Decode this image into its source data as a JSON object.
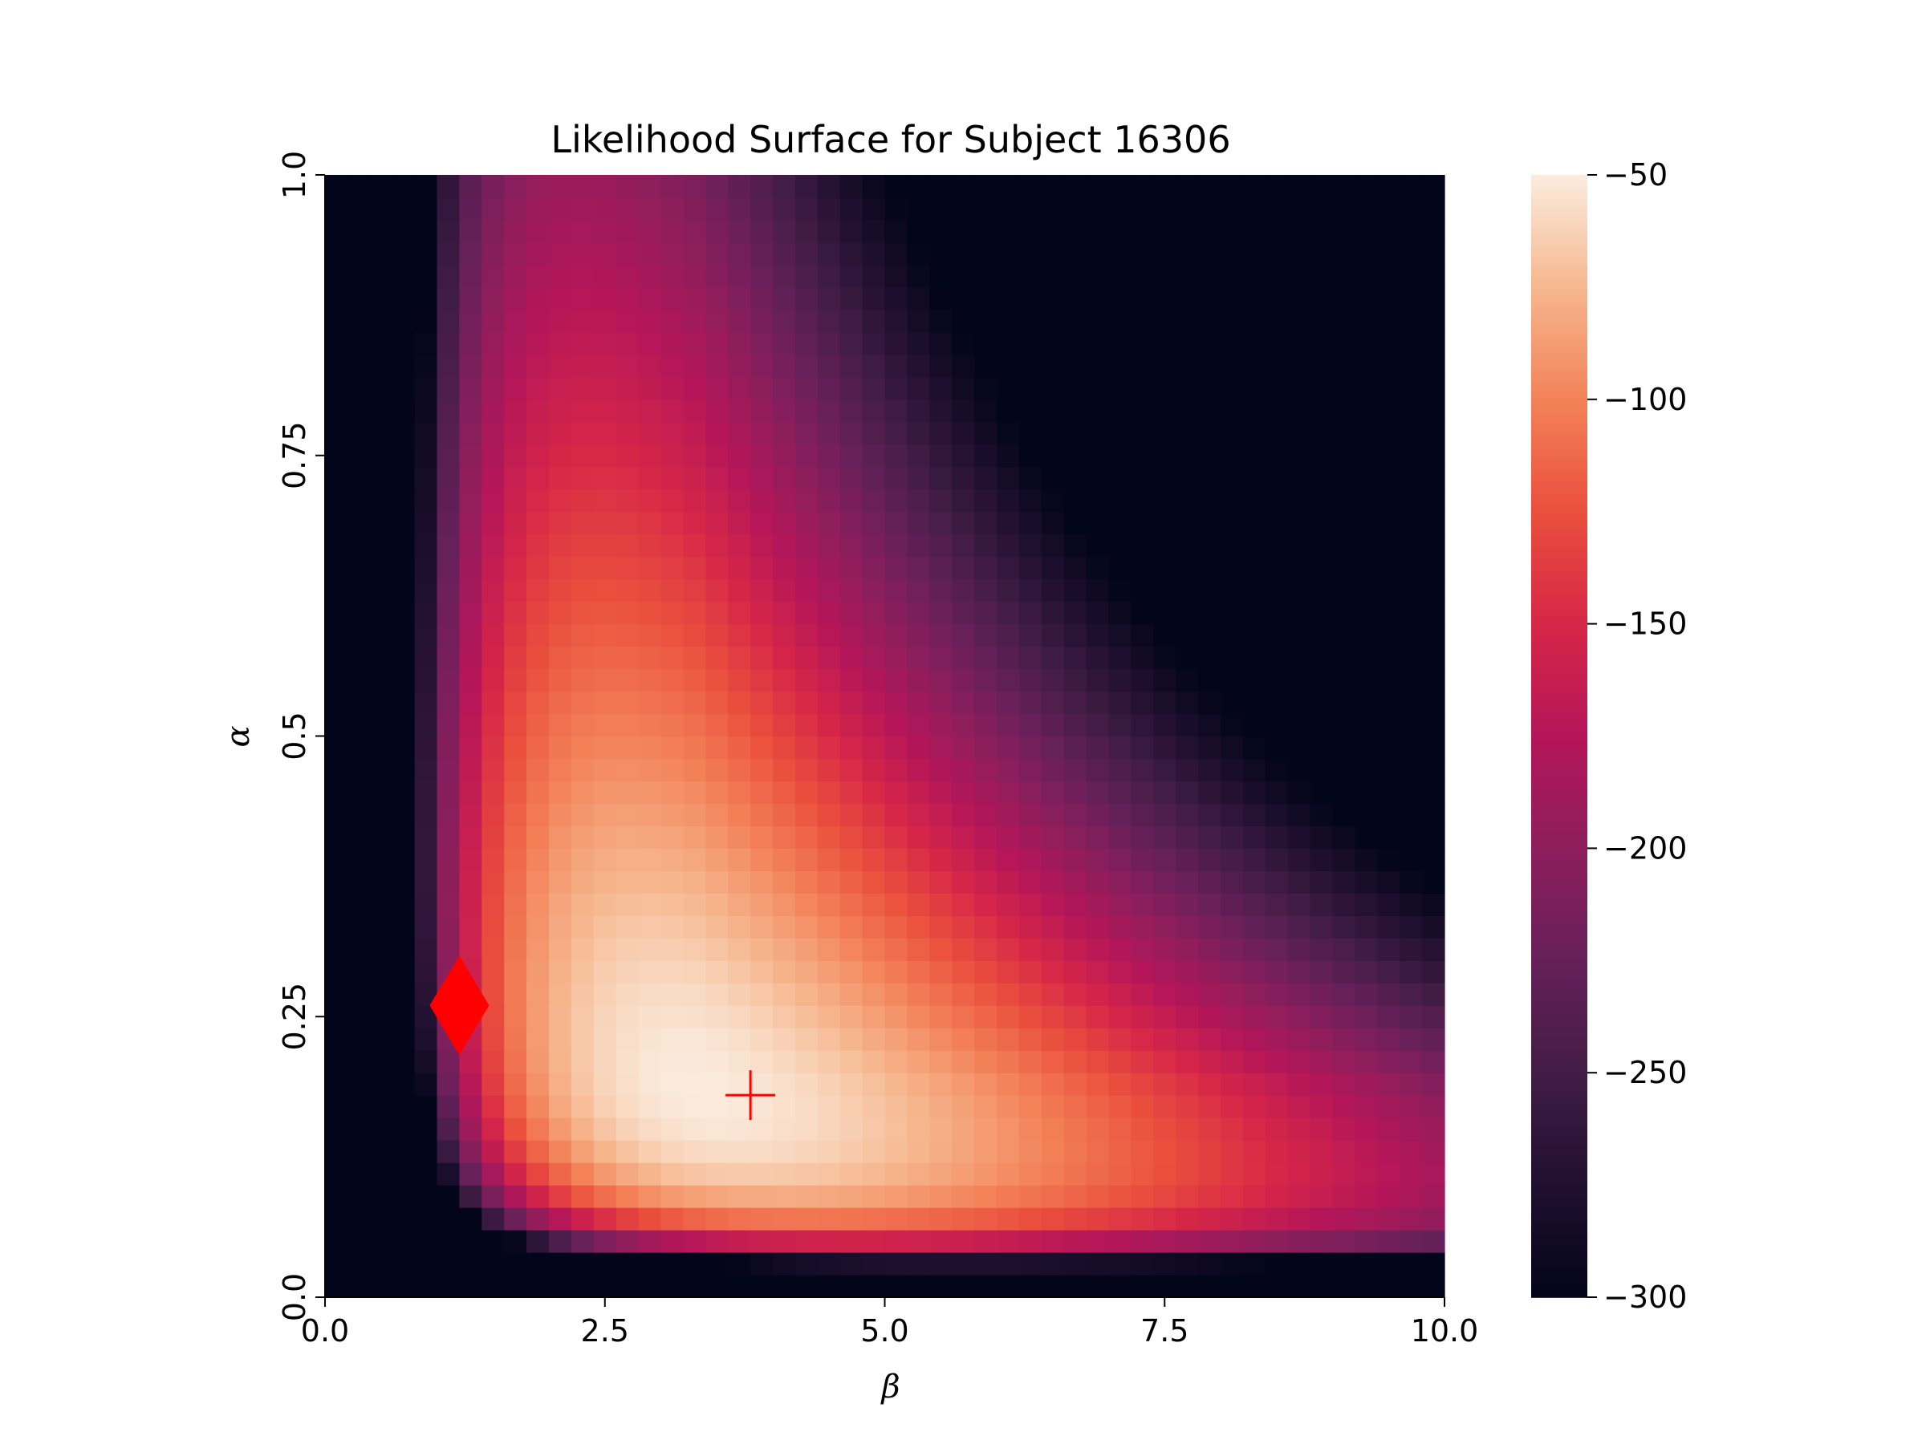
{
  "chart_data": {
    "type": "heatmap",
    "title": "Likelihood Surface for Subject 16306",
    "xlabel": "β",
    "ylabel": "α",
    "xlim": [
      0,
      10
    ],
    "ylim": [
      0,
      1
    ],
    "x_ticks": [
      0,
      2.5,
      5,
      7.5,
      10
    ],
    "x_tick_labels": [
      "0.0",
      "2.5",
      "5.0",
      "7.5",
      "10.0"
    ],
    "y_ticks": [
      0,
      0.25,
      0.5,
      0.75,
      1
    ],
    "y_tick_labels": [
      "0.0",
      "0.25",
      "0.5",
      "0.75",
      "1.0"
    ],
    "grid_columns": 50,
    "grid_rows": 50,
    "surface": "log-likelihood evaluated on a 50 x 50 grid over beta in [0, 10] and alpha in [0, 1]; values clipped to the colorbar range",
    "peak": {
      "beta": 3.3,
      "alpha": 0.18,
      "value": -50
    },
    "value_range": [
      -300,
      -50
    ],
    "colormap": "rocket",
    "colorbar": {
      "ticks": [
        -50,
        -100,
        -150,
        -200,
        -250,
        -300
      ],
      "tick_labels": [
        "−50",
        "−100",
        "−150",
        "−200",
        "−250",
        "−300"
      ]
    },
    "markers": [
      {
        "name": "diamond",
        "beta": 1.2,
        "alpha": 0.26,
        "color": "#ff0000"
      },
      {
        "name": "plus",
        "beta": 3.8,
        "alpha": 0.18,
        "color": "#ff0000"
      }
    ]
  }
}
